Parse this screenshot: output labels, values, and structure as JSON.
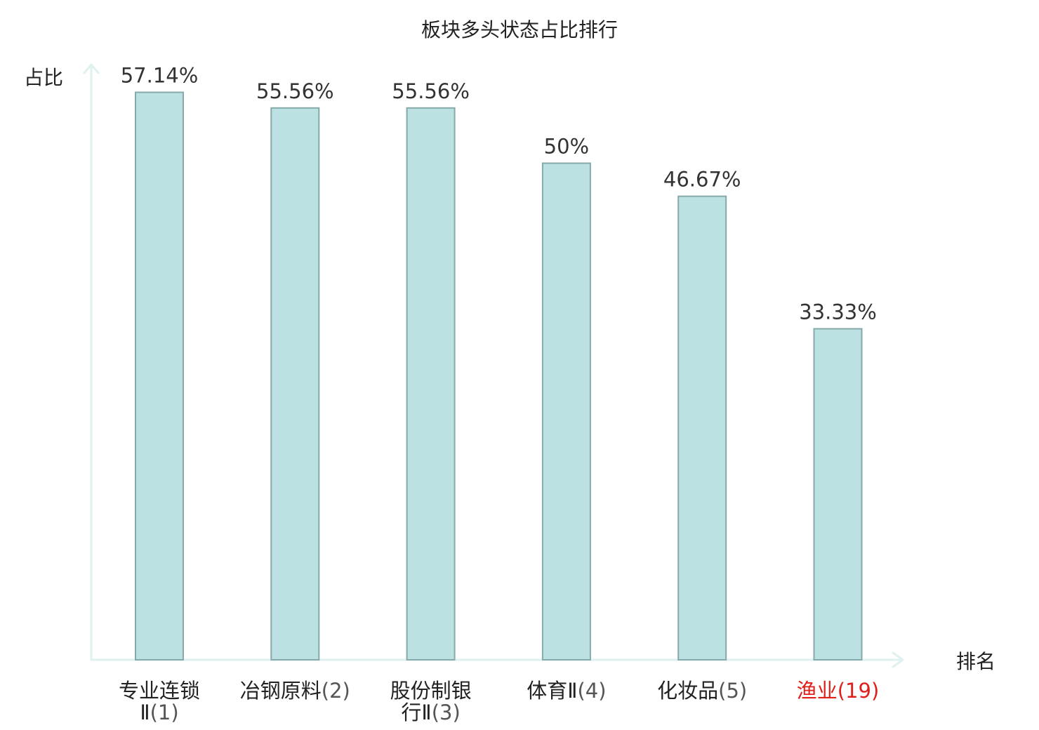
{
  "chart_data": {
    "type": "bar",
    "title": "板块多头状态占比排行",
    "ylabel": "占比",
    "xlabel": "排名",
    "ylim": [
      0,
      60
    ],
    "grid": false,
    "legend": "none",
    "categories": [
      {
        "name_lines": [
          "专业连锁",
          "Ⅱ"
        ],
        "rank": "(1)",
        "highlight": false
      },
      {
        "name_lines": [
          "冶钢原料"
        ],
        "rank": "(2)",
        "highlight": false
      },
      {
        "name_lines": [
          "股份制银",
          "行Ⅱ"
        ],
        "rank": "(3)",
        "highlight": false
      },
      {
        "name_lines": [
          "体育Ⅱ"
        ],
        "rank": "(4)",
        "highlight": false
      },
      {
        "name_lines": [
          "化妆品"
        ],
        "rank": "(5)",
        "highlight": false
      },
      {
        "name_lines": [
          "渔业"
        ],
        "rank": "(19)",
        "highlight": true
      }
    ],
    "values": [
      57.14,
      55.56,
      55.56,
      50,
      46.67,
      33.33
    ],
    "value_labels": [
      "57.14%",
      "55.56%",
      "55.56%",
      "50%",
      "46.67%",
      "33.33%"
    ],
    "colors": {
      "bar_fill": "#bce1e3",
      "bar_stroke": "#86a9aa",
      "axis": "#dff2ef",
      "highlight_text": "#e0201b",
      "normal_text": "#222222",
      "suffix_text": "#555555"
    }
  }
}
